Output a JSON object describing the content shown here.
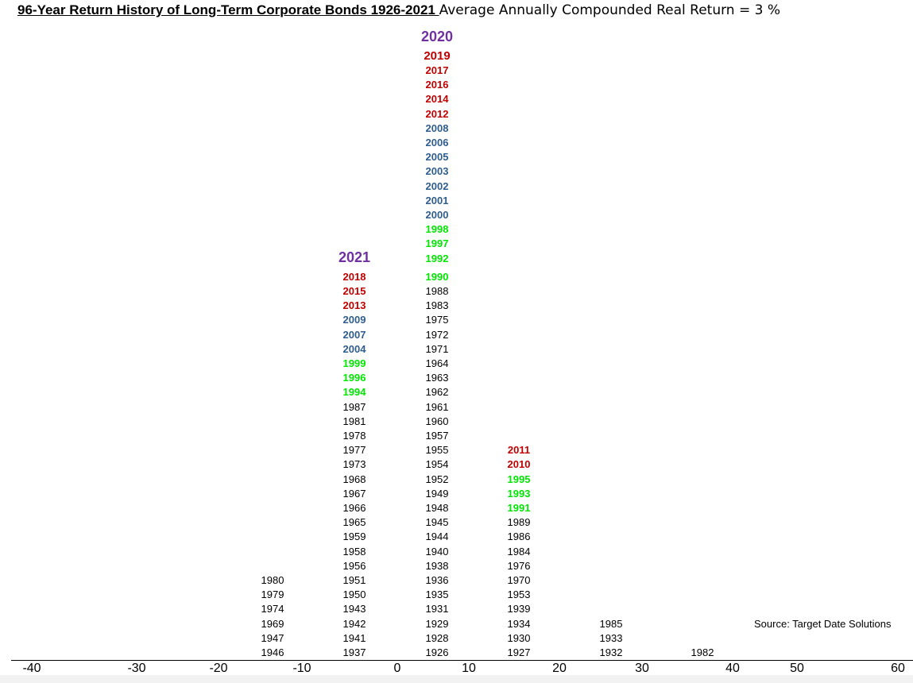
{
  "title": {
    "main": "96-Year Return History of Long-Term Corporate Bonds 1926-2021 ",
    "sub": "Average Annually Compounded Real Return  =  3 %"
  },
  "source": "Source: Target Date Solutions",
  "colors": {
    "black": "#000000",
    "red": "#c00000",
    "blue": "#2f5d8c",
    "green": "#00e600",
    "purple": "#7030a0"
  },
  "chart_data": {
    "type": "table",
    "x_axis": {
      "ticks": [
        "-40",
        "-30",
        "-20",
        "-10",
        "0",
        "10",
        "20",
        "30",
        "40",
        "50",
        "60"
      ],
      "range": [
        -40,
        60
      ]
    },
    "bins": [
      {
        "range": [
          -20,
          -10
        ],
        "years": [
          {
            "y": "1946",
            "c": "black"
          },
          {
            "y": "1947",
            "c": "black"
          },
          {
            "y": "1969",
            "c": "black"
          },
          {
            "y": "1974",
            "c": "black"
          },
          {
            "y": "1979",
            "c": "black"
          },
          {
            "y": "1980",
            "c": "black"
          }
        ]
      },
      {
        "range": [
          -10,
          0
        ],
        "years": [
          {
            "y": "1937",
            "c": "black"
          },
          {
            "y": "1941",
            "c": "black"
          },
          {
            "y": "1942",
            "c": "black"
          },
          {
            "y": "1943",
            "c": "black"
          },
          {
            "y": "1950",
            "c": "black"
          },
          {
            "y": "1951",
            "c": "black"
          },
          {
            "y": "1956",
            "c": "black"
          },
          {
            "y": "1958",
            "c": "black"
          },
          {
            "y": "1959",
            "c": "black"
          },
          {
            "y": "1965",
            "c": "black"
          },
          {
            "y": "1966",
            "c": "black"
          },
          {
            "y": "1967",
            "c": "black"
          },
          {
            "y": "1968",
            "c": "black"
          },
          {
            "y": "1973",
            "c": "black"
          },
          {
            "y": "1977",
            "c": "black"
          },
          {
            "y": "1978",
            "c": "black"
          },
          {
            "y": "1981",
            "c": "black"
          },
          {
            "y": "1987",
            "c": "black"
          },
          {
            "y": "1994",
            "c": "green"
          },
          {
            "y": "1996",
            "c": "green"
          },
          {
            "y": "1999",
            "c": "green"
          },
          {
            "y": "2004",
            "c": "blue"
          },
          {
            "y": "2007",
            "c": "blue"
          },
          {
            "y": "2009",
            "c": "blue"
          },
          {
            "y": "2013",
            "c": "red"
          },
          {
            "y": "2015",
            "c": "red"
          },
          {
            "y": "2018",
            "c": "red"
          },
          {
            "y": "2021",
            "c": "purple"
          }
        ]
      },
      {
        "range": [
          0,
          10
        ],
        "years": [
          {
            "y": "1926",
            "c": "black"
          },
          {
            "y": "1928",
            "c": "black"
          },
          {
            "y": "1929",
            "c": "black"
          },
          {
            "y": "1931",
            "c": "black"
          },
          {
            "y": "1935",
            "c": "black"
          },
          {
            "y": "1936",
            "c": "black"
          },
          {
            "y": "1938",
            "c": "black"
          },
          {
            "y": "1940",
            "c": "black"
          },
          {
            "y": "1944",
            "c": "black"
          },
          {
            "y": "1945",
            "c": "black"
          },
          {
            "y": "1948",
            "c": "black"
          },
          {
            "y": "1949",
            "c": "black"
          },
          {
            "y": "1952",
            "c": "black"
          },
          {
            "y": "1954",
            "c": "black"
          },
          {
            "y": "1955",
            "c": "black"
          },
          {
            "y": "1957",
            "c": "black"
          },
          {
            "y": "1960",
            "c": "black"
          },
          {
            "y": "1961",
            "c": "black"
          },
          {
            "y": "1962",
            "c": "black"
          },
          {
            "y": "1963",
            "c": "black"
          },
          {
            "y": "1964",
            "c": "black"
          },
          {
            "y": "1971",
            "c": "black"
          },
          {
            "y": "1972",
            "c": "black"
          },
          {
            "y": "1975",
            "c": "black"
          },
          {
            "y": "1983",
            "c": "black"
          },
          {
            "y": "1988",
            "c": "black"
          },
          {
            "y": "1990",
            "c": "green"
          },
          {
            "y": "1992",
            "c": "green"
          },
          {
            "y": "1997",
            "c": "green"
          },
          {
            "y": "1998",
            "c": "green"
          },
          {
            "y": "2000",
            "c": "blue"
          },
          {
            "y": "2001",
            "c": "blue"
          },
          {
            "y": "2002",
            "c": "blue"
          },
          {
            "y": "2003",
            "c": "blue"
          },
          {
            "y": "2005",
            "c": "blue"
          },
          {
            "y": "2006",
            "c": "blue"
          },
          {
            "y": "2008",
            "c": "blue"
          },
          {
            "y": "2012",
            "c": "red"
          },
          {
            "y": "2014",
            "c": "red"
          },
          {
            "y": "2016",
            "c": "red"
          },
          {
            "y": "2017",
            "c": "red"
          },
          {
            "y": "2019",
            "c": "red"
          },
          {
            "y": "2020",
            "c": "purple"
          }
        ]
      },
      {
        "range": [
          10,
          20
        ],
        "years": [
          {
            "y": "1927",
            "c": "black"
          },
          {
            "y": "1930",
            "c": "black"
          },
          {
            "y": "1934",
            "c": "black"
          },
          {
            "y": "1939",
            "c": "black"
          },
          {
            "y": "1953",
            "c": "black"
          },
          {
            "y": "1970",
            "c": "black"
          },
          {
            "y": "1976",
            "c": "black"
          },
          {
            "y": "1984",
            "c": "black"
          },
          {
            "y": "1986",
            "c": "black"
          },
          {
            "y": "1989",
            "c": "black"
          },
          {
            "y": "1991",
            "c": "green"
          },
          {
            "y": "1993",
            "c": "green"
          },
          {
            "y": "1995",
            "c": "green"
          },
          {
            "y": "2010",
            "c": "red"
          },
          {
            "y": "2011",
            "c": "red"
          }
        ]
      },
      {
        "range": [
          20,
          30
        ],
        "years": [
          {
            "y": "1932",
            "c": "black"
          },
          {
            "y": "1933",
            "c": "black"
          },
          {
            "y": "1985",
            "c": "black"
          }
        ]
      },
      {
        "range": [
          30,
          40
        ],
        "years": [
          {
            "y": "1982",
            "c": "black"
          }
        ]
      }
    ]
  }
}
